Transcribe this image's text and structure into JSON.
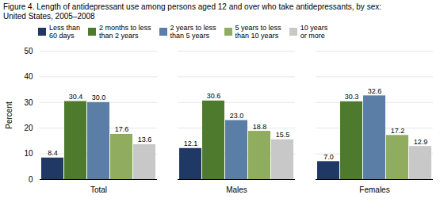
{
  "chart_data": {
    "type": "bar",
    "title": "Figure 4. Length of antidepressant use among persons aged 12 and over who take antidepressants, by sex:",
    "subtitle": "United States, 2005–2008",
    "categories": [
      "Total",
      "Males",
      "Females"
    ],
    "series": [
      {
        "name": "Less than\n60 days",
        "color": "#1f3864",
        "values": [
          8.4,
          12.1,
          7.0
        ],
        "value_labels": [
          "8.4",
          "12.1",
          "7.0"
        ]
      },
      {
        "name": "2 months to less\nthan 2 years",
        "color": "#4e7a2e",
        "values": [
          30.4,
          30.6,
          30.3
        ],
        "value_labels": [
          "30.4",
          "30.6",
          "30.3"
        ]
      },
      {
        "name": "2 years to less\nthan 5 years",
        "color": "#5b7ea6",
        "values": [
          30.0,
          23.0,
          32.6
        ],
        "value_labels": [
          "30.0",
          "23.0",
          "32.6"
        ]
      },
      {
        "name": "5 years to less\nthan 10 years",
        "color": "#8fac5f",
        "values": [
          17.6,
          18.8,
          17.2
        ],
        "value_labels": [
          "17.6",
          "18.8",
          "17.2"
        ]
      },
      {
        "name": "10 years\nor more",
        "color": "#c8c8c8",
        "values": [
          13.6,
          15.5,
          12.9
        ],
        "value_labels": [
          "13.6",
          "15.5",
          "12.9"
        ]
      }
    ],
    "ylabel": "Percent",
    "ylim": [
      0,
      50
    ],
    "yticks": [
      0,
      10,
      20,
      30,
      40,
      50
    ],
    "grid": true,
    "data_labels": true,
    "legend": "top"
  }
}
